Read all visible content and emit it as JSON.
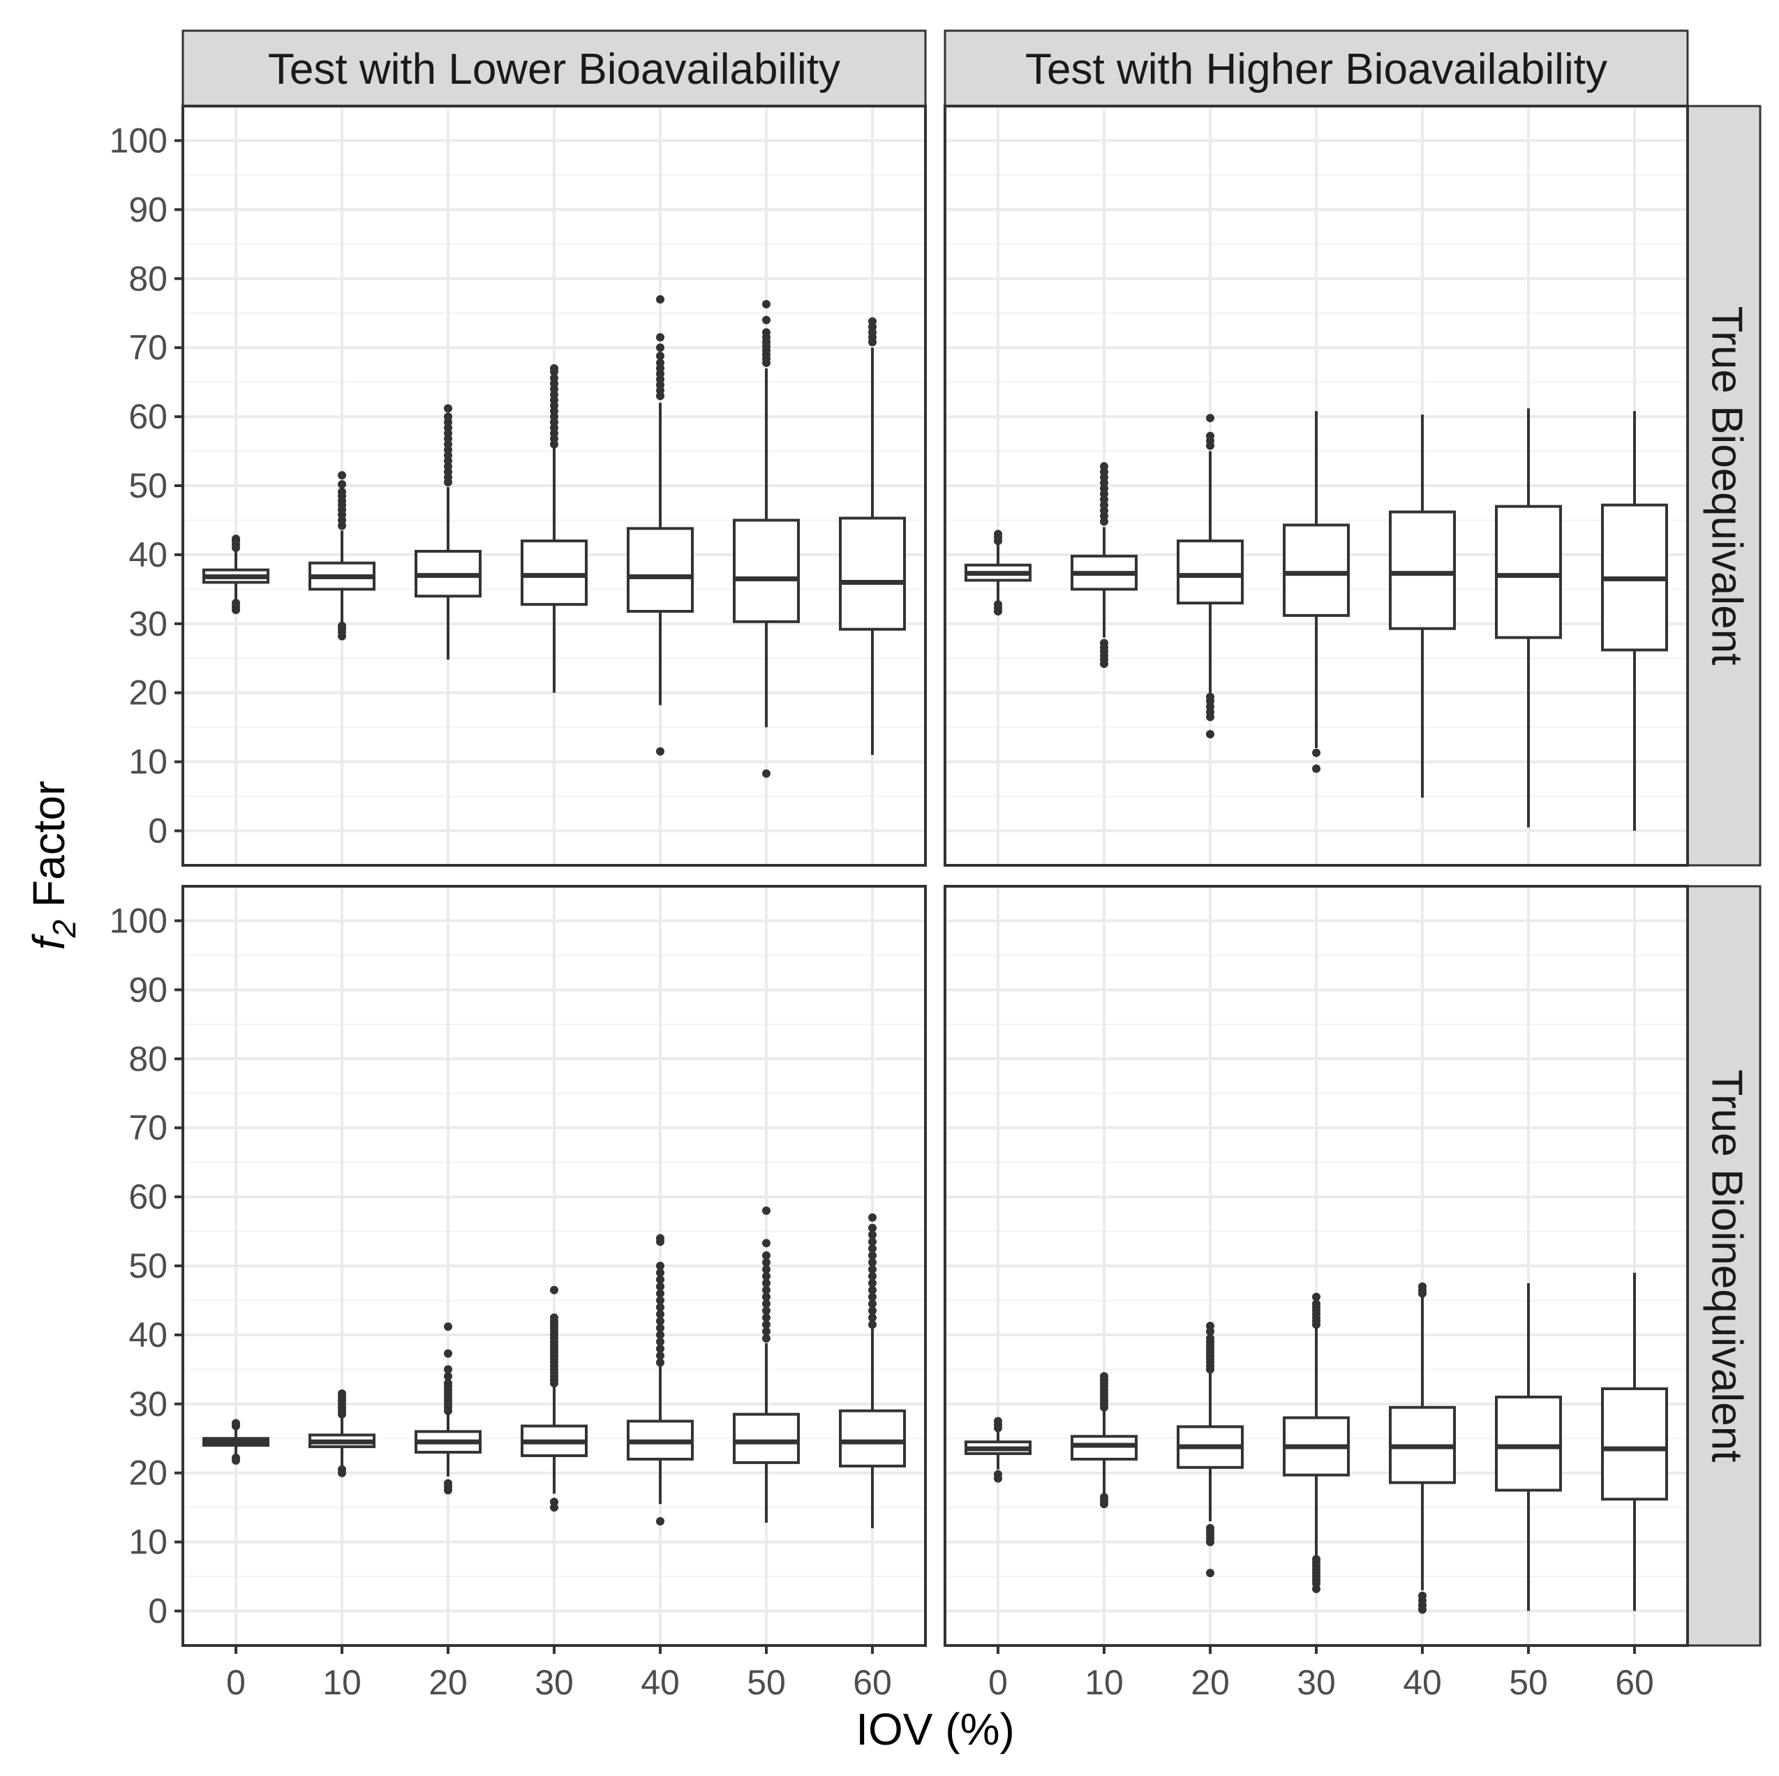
{
  "chart_data": {
    "type": "boxplot",
    "xlabel": "IOV (%)",
    "ylabel_main": "f",
    "ylabel_sub": "2",
    "ylabel_rest": " Factor",
    "ylim": [
      -5,
      105
    ],
    "y_ticks": [
      "0",
      "10",
      "20",
      "30",
      "40",
      "50",
      "60",
      "70",
      "80",
      "90",
      "100"
    ],
    "categories": [
      "0",
      "10",
      "20",
      "30",
      "40",
      "50",
      "60"
    ],
    "facet_columns": [
      "Test with Lower Bioavailability",
      "Test with Higher Bioavailability"
    ],
    "facet_rows": [
      "True Bioequivalent",
      "True Bioinequivalent"
    ],
    "panels": [
      {
        "column": "Test with Lower Bioavailability",
        "row": "True Bioequivalent",
        "boxes": [
          {
            "x": "0",
            "q1": 36.0,
            "median": 36.8,
            "q3": 37.8,
            "wlo": 33.5,
            "whi": 40.5,
            "outliers": [
              32.0,
              32.5,
              33.0,
              41.0,
              41.5,
              42.0,
              42.3
            ]
          },
          {
            "x": "10",
            "q1": 35.0,
            "median": 36.8,
            "q3": 38.8,
            "wlo": 30.0,
            "whi": 43.5,
            "outliers": [
              28.2,
              28.8,
              29.3,
              29.7,
              44.2,
              45.0,
              45.8,
              46.5,
              47.2,
              47.8,
              48.5,
              49.1,
              50.2,
              51.5
            ]
          },
          {
            "x": "20",
            "q1": 34.0,
            "median": 37.0,
            "q3": 40.5,
            "wlo": 24.8,
            "whi": 49.8,
            "outliers": [
              50.5,
              51.2,
              52.0,
              52.8,
              53.6,
              54.4,
              55.2,
              56.0,
              56.8,
              57.6,
              58.4,
              59.2,
              60.0,
              61.2
            ]
          },
          {
            "x": "30",
            "q1": 32.8,
            "median": 37.0,
            "q3": 42.0,
            "wlo": 20.0,
            "whi": 55.5,
            "outliers": [
              56.0,
              56.8,
              57.6,
              58.4,
              59.2,
              60.0,
              60.8,
              61.6,
              62.4,
              63.2,
              64.0,
              64.8,
              65.6,
              66.5,
              67.0
            ]
          },
          {
            "x": "40",
            "q1": 31.8,
            "median": 36.8,
            "q3": 43.8,
            "wlo": 18.2,
            "whi": 62.0,
            "outliers": [
              11.5,
              63.0,
              63.8,
              64.6,
              65.4,
              66.2,
              67.0,
              67.8,
              68.8,
              70.0,
              71.5,
              77.0
            ]
          },
          {
            "x": "50",
            "q1": 30.3,
            "median": 36.5,
            "q3": 45.0,
            "wlo": 15.0,
            "whi": 67.0,
            "outliers": [
              8.3,
              67.8,
              68.4,
              69.0,
              69.6,
              70.2,
              70.8,
              71.5,
              72.2,
              74.0,
              76.3
            ]
          },
          {
            "x": "60",
            "q1": 29.2,
            "median": 36.0,
            "q3": 45.3,
            "wlo": 11.0,
            "whi": 70.0,
            "outliers": [
              70.8,
              71.5,
              72.2,
              73.0,
              73.8
            ]
          }
        ]
      },
      {
        "column": "Test with Higher Bioavailability",
        "row": "True Bioequivalent",
        "boxes": [
          {
            "x": "0",
            "q1": 36.3,
            "median": 37.3,
            "q3": 38.5,
            "wlo": 33.0,
            "whi": 41.5,
            "outliers": [
              31.8,
              32.3,
              32.8,
              42.0,
              42.5,
              43.0
            ]
          },
          {
            "x": "10",
            "q1": 35.0,
            "median": 37.3,
            "q3": 39.8,
            "wlo": 28.0,
            "whi": 44.0,
            "outliers": [
              24.2,
              24.8,
              25.4,
              26.0,
              26.6,
              27.2,
              44.8,
              45.6,
              46.4,
              47.2,
              48.0,
              48.8,
              49.6,
              50.4,
              51.2,
              52.0,
              52.8
            ]
          },
          {
            "x": "20",
            "q1": 33.0,
            "median": 37.0,
            "q3": 42.0,
            "wlo": 20.0,
            "whi": 55.0,
            "outliers": [
              14.0,
              16.5,
              17.2,
              18.0,
              18.8,
              19.4,
              55.8,
              56.5,
              57.2,
              59.8
            ]
          },
          {
            "x": "30",
            "q1": 31.2,
            "median": 37.3,
            "q3": 44.3,
            "wlo": 12.0,
            "whi": 60.8,
            "outliers": [
              9.0,
              11.3
            ]
          },
          {
            "x": "40",
            "q1": 29.3,
            "median": 37.3,
            "q3": 46.2,
            "wlo": 4.8,
            "whi": 60.3,
            "outliers": []
          },
          {
            "x": "50",
            "q1": 28.0,
            "median": 37.0,
            "q3": 47.0,
            "wlo": 0.5,
            "whi": 61.2,
            "outliers": []
          },
          {
            "x": "60",
            "q1": 26.2,
            "median": 36.5,
            "q3": 47.2,
            "wlo": 0.0,
            "whi": 60.8,
            "outliers": []
          }
        ]
      },
      {
        "column": "Test with Lower Bioavailability",
        "row": "True Bioinequivalent",
        "boxes": [
          {
            "x": "0",
            "q1": 24.0,
            "median": 24.5,
            "q3": 25.0,
            "wlo": 22.5,
            "whi": 26.5,
            "outliers": [
              21.8,
              22.2,
              26.8,
              27.2
            ]
          },
          {
            "x": "10",
            "q1": 23.8,
            "median": 24.5,
            "q3": 25.5,
            "wlo": 21.0,
            "whi": 28.0,
            "outliers": [
              20.0,
              20.5,
              28.5,
              29.0,
              29.5,
              30.0,
              30.5,
              31.0,
              31.5
            ]
          },
          {
            "x": "20",
            "q1": 23.0,
            "median": 24.5,
            "q3": 26.0,
            "wlo": 19.5,
            "whi": 28.5,
            "outliers": [
              17.5,
              18.0,
              18.5,
              29.0,
              29.5,
              30.0,
              30.5,
              31.0,
              31.5,
              32.0,
              32.5,
              33.0,
              34.0,
              35.0,
              37.3,
              41.2
            ]
          },
          {
            "x": "30",
            "q1": 22.5,
            "median": 24.5,
            "q3": 26.8,
            "wlo": 17.0,
            "whi": 32.5,
            "outliers": [
              15.0,
              15.8,
              33.0,
              33.5,
              34.0,
              34.5,
              35.0,
              35.5,
              36.0,
              36.5,
              37.0,
              37.5,
              38.0,
              38.5,
              39.0,
              39.5,
              40.0,
              40.5,
              41.0,
              41.5,
              42.0,
              42.5,
              46.5
            ]
          },
          {
            "x": "40",
            "q1": 22.0,
            "median": 24.5,
            "q3": 27.5,
            "wlo": 15.5,
            "whi": 35.5,
            "outliers": [
              13.0,
              36.0,
              37.0,
              38.0,
              39.0,
              40.0,
              41.0,
              42.0,
              43.0,
              44.0,
              45.0,
              46.0,
              47.0,
              48.0,
              49.0,
              50.0,
              53.5,
              54.0
            ]
          },
          {
            "x": "50",
            "q1": 21.5,
            "median": 24.5,
            "q3": 28.5,
            "wlo": 12.8,
            "whi": 38.8,
            "outliers": [
              39.5,
              40.5,
              41.5,
              42.5,
              43.5,
              44.5,
              45.5,
              46.5,
              47.5,
              48.5,
              49.5,
              50.5,
              51.5,
              53.3,
              58.0
            ]
          },
          {
            "x": "60",
            "q1": 21.0,
            "median": 24.5,
            "q3": 29.0,
            "wlo": 12.0,
            "whi": 41.0,
            "outliers": [
              41.5,
              42.5,
              43.5,
              44.5,
              45.5,
              46.5,
              47.5,
              48.5,
              49.5,
              50.5,
              51.5,
              52.5,
              53.5,
              54.5,
              55.5,
              57.0
            ]
          }
        ]
      },
      {
        "column": "Test with Higher Bioavailability",
        "row": "True Bioinequivalent",
        "boxes": [
          {
            "x": "0",
            "q1": 22.8,
            "median": 23.5,
            "q3": 24.5,
            "wlo": 20.5,
            "whi": 26.0,
            "outliers": [
              19.2,
              19.8,
              26.5,
              27.0,
              27.5
            ]
          },
          {
            "x": "10",
            "q1": 22.0,
            "median": 24.0,
            "q3": 25.3,
            "wlo": 17.0,
            "whi": 29.0,
            "outliers": [
              15.5,
              16.0,
              16.5,
              29.5,
              30.0,
              30.5,
              31.0,
              31.5,
              32.0,
              32.5,
              33.0,
              33.5,
              34.0
            ]
          },
          {
            "x": "20",
            "q1": 20.8,
            "median": 23.8,
            "q3": 26.7,
            "wlo": 13.0,
            "whi": 34.5,
            "outliers": [
              5.5,
              10.0,
              10.5,
              11.0,
              11.5,
              12.0,
              35.0,
              35.5,
              36.0,
              36.5,
              37.0,
              37.5,
              38.0,
              38.5,
              39.0,
              39.5,
              40.5,
              41.3
            ]
          },
          {
            "x": "30",
            "q1": 19.7,
            "median": 23.8,
            "q3": 28.0,
            "wlo": 8.0,
            "whi": 41.0,
            "outliers": [
              3.2,
              4.0,
              4.5,
              5.0,
              5.5,
              6.0,
              6.5,
              7.0,
              7.5,
              41.5,
              42.0,
              42.5,
              43.0,
              43.5,
              44.0,
              44.5,
              45.5
            ]
          },
          {
            "x": "40",
            "q1": 18.6,
            "median": 23.8,
            "q3": 29.5,
            "wlo": 3.0,
            "whi": 45.5,
            "outliers": [
              0.2,
              0.8,
              1.5,
              2.2,
              46.0,
              46.5,
              47.0
            ]
          },
          {
            "x": "50",
            "q1": 17.5,
            "median": 23.8,
            "q3": 31.0,
            "wlo": 0.0,
            "whi": 47.5,
            "outliers": []
          },
          {
            "x": "60",
            "q1": 16.2,
            "median": 23.5,
            "q3": 32.2,
            "wlo": 0.0,
            "whi": 49.0,
            "outliers": []
          }
        ]
      }
    ]
  }
}
